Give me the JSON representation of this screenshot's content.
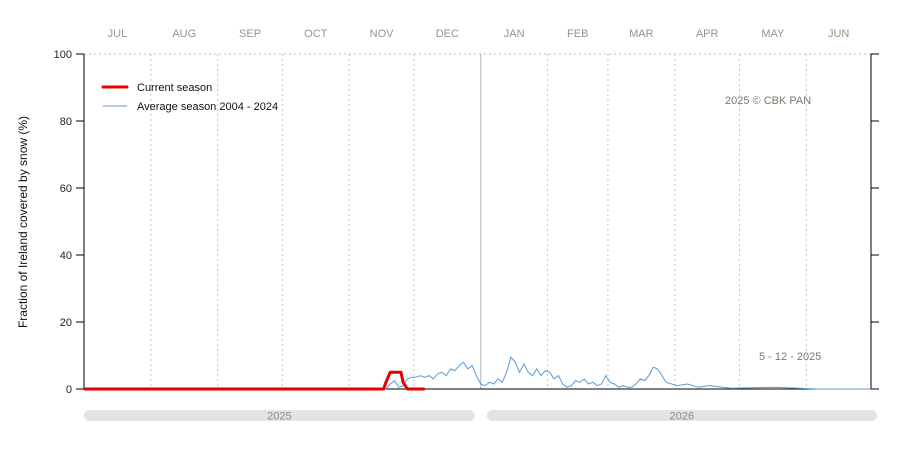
{
  "chart_data": {
    "type": "line",
    "ylabel": "Fraction of  Ireland  covered by snow (%)",
    "months": [
      "JUL",
      "AUG",
      "SEP",
      "OCT",
      "NOV",
      "DEC",
      "JAN",
      "FEB",
      "MAR",
      "APR",
      "MAY",
      "JUN"
    ],
    "ylim": [
      0,
      100
    ],
    "yticks": [
      0,
      20,
      40,
      60,
      80,
      100
    ],
    "grid": true,
    "legend_position": "top-left",
    "credit": "2025  © CBK PAN",
    "date_stamp": "5 - 12 - 2025",
    "year_bands": [
      {
        "label": "2025",
        "from_day": 0,
        "to_day": 184
      },
      {
        "label": "2026",
        "from_day": 184,
        "to_day": 365
      }
    ],
    "series": [
      {
        "name": "Current season",
        "color": "#e60000",
        "x": [
          0,
          20,
          40,
          60,
          80,
          100,
          120,
          135,
          139,
          140,
          142,
          143,
          145,
          147,
          148,
          150,
          152,
          155,
          158
        ],
        "y": [
          0,
          0,
          0,
          0,
          0,
          0,
          0,
          0,
          0,
          2,
          5,
          5,
          5,
          5,
          2,
          0,
          0,
          0,
          0
        ]
      },
      {
        "name": "Average season 2004 - 2024",
        "color": "#5b9bd5",
        "x": [
          0,
          50,
          100,
          135,
          140,
          142,
          144,
          146,
          148,
          150,
          152,
          154,
          156,
          158,
          160,
          162,
          164,
          166,
          168,
          170,
          172,
          174,
          176,
          178,
          180,
          182,
          184,
          186,
          188,
          190,
          192,
          194,
          196,
          198,
          200,
          202,
          204,
          206,
          208,
          210,
          212,
          214,
          216,
          218,
          220,
          222,
          224,
          226,
          228,
          230,
          232,
          234,
          236,
          238,
          240,
          242,
          244,
          246,
          248,
          250,
          252,
          254,
          256,
          258,
          260,
          262,
          264,
          266,
          268,
          270,
          275,
          280,
          285,
          290,
          300,
          320,
          340,
          365
        ],
        "y": [
          0,
          0,
          0,
          0,
          0,
          1.5,
          2.5,
          0.5,
          1,
          3,
          3.5,
          3.5,
          4,
          3.5,
          4,
          3,
          4.5,
          5,
          4,
          6,
          5.5,
          7,
          8,
          6,
          7,
          4,
          1.5,
          1,
          2,
          1.5,
          3,
          2,
          5,
          9.5,
          8,
          5,
          7.5,
          5,
          4,
          6,
          4,
          5.5,
          5,
          3,
          4,
          1.5,
          0.5,
          1,
          2.5,
          2,
          3,
          1.5,
          2,
          1,
          1.5,
          4,
          2,
          1.5,
          0.5,
          1,
          0.5,
          0.5,
          1.5,
          3,
          2.5,
          4,
          6.5,
          6,
          4,
          2,
          1,
          1.5,
          0.5,
          1,
          0.2,
          0.5,
          0,
          0
        ]
      }
    ]
  }
}
